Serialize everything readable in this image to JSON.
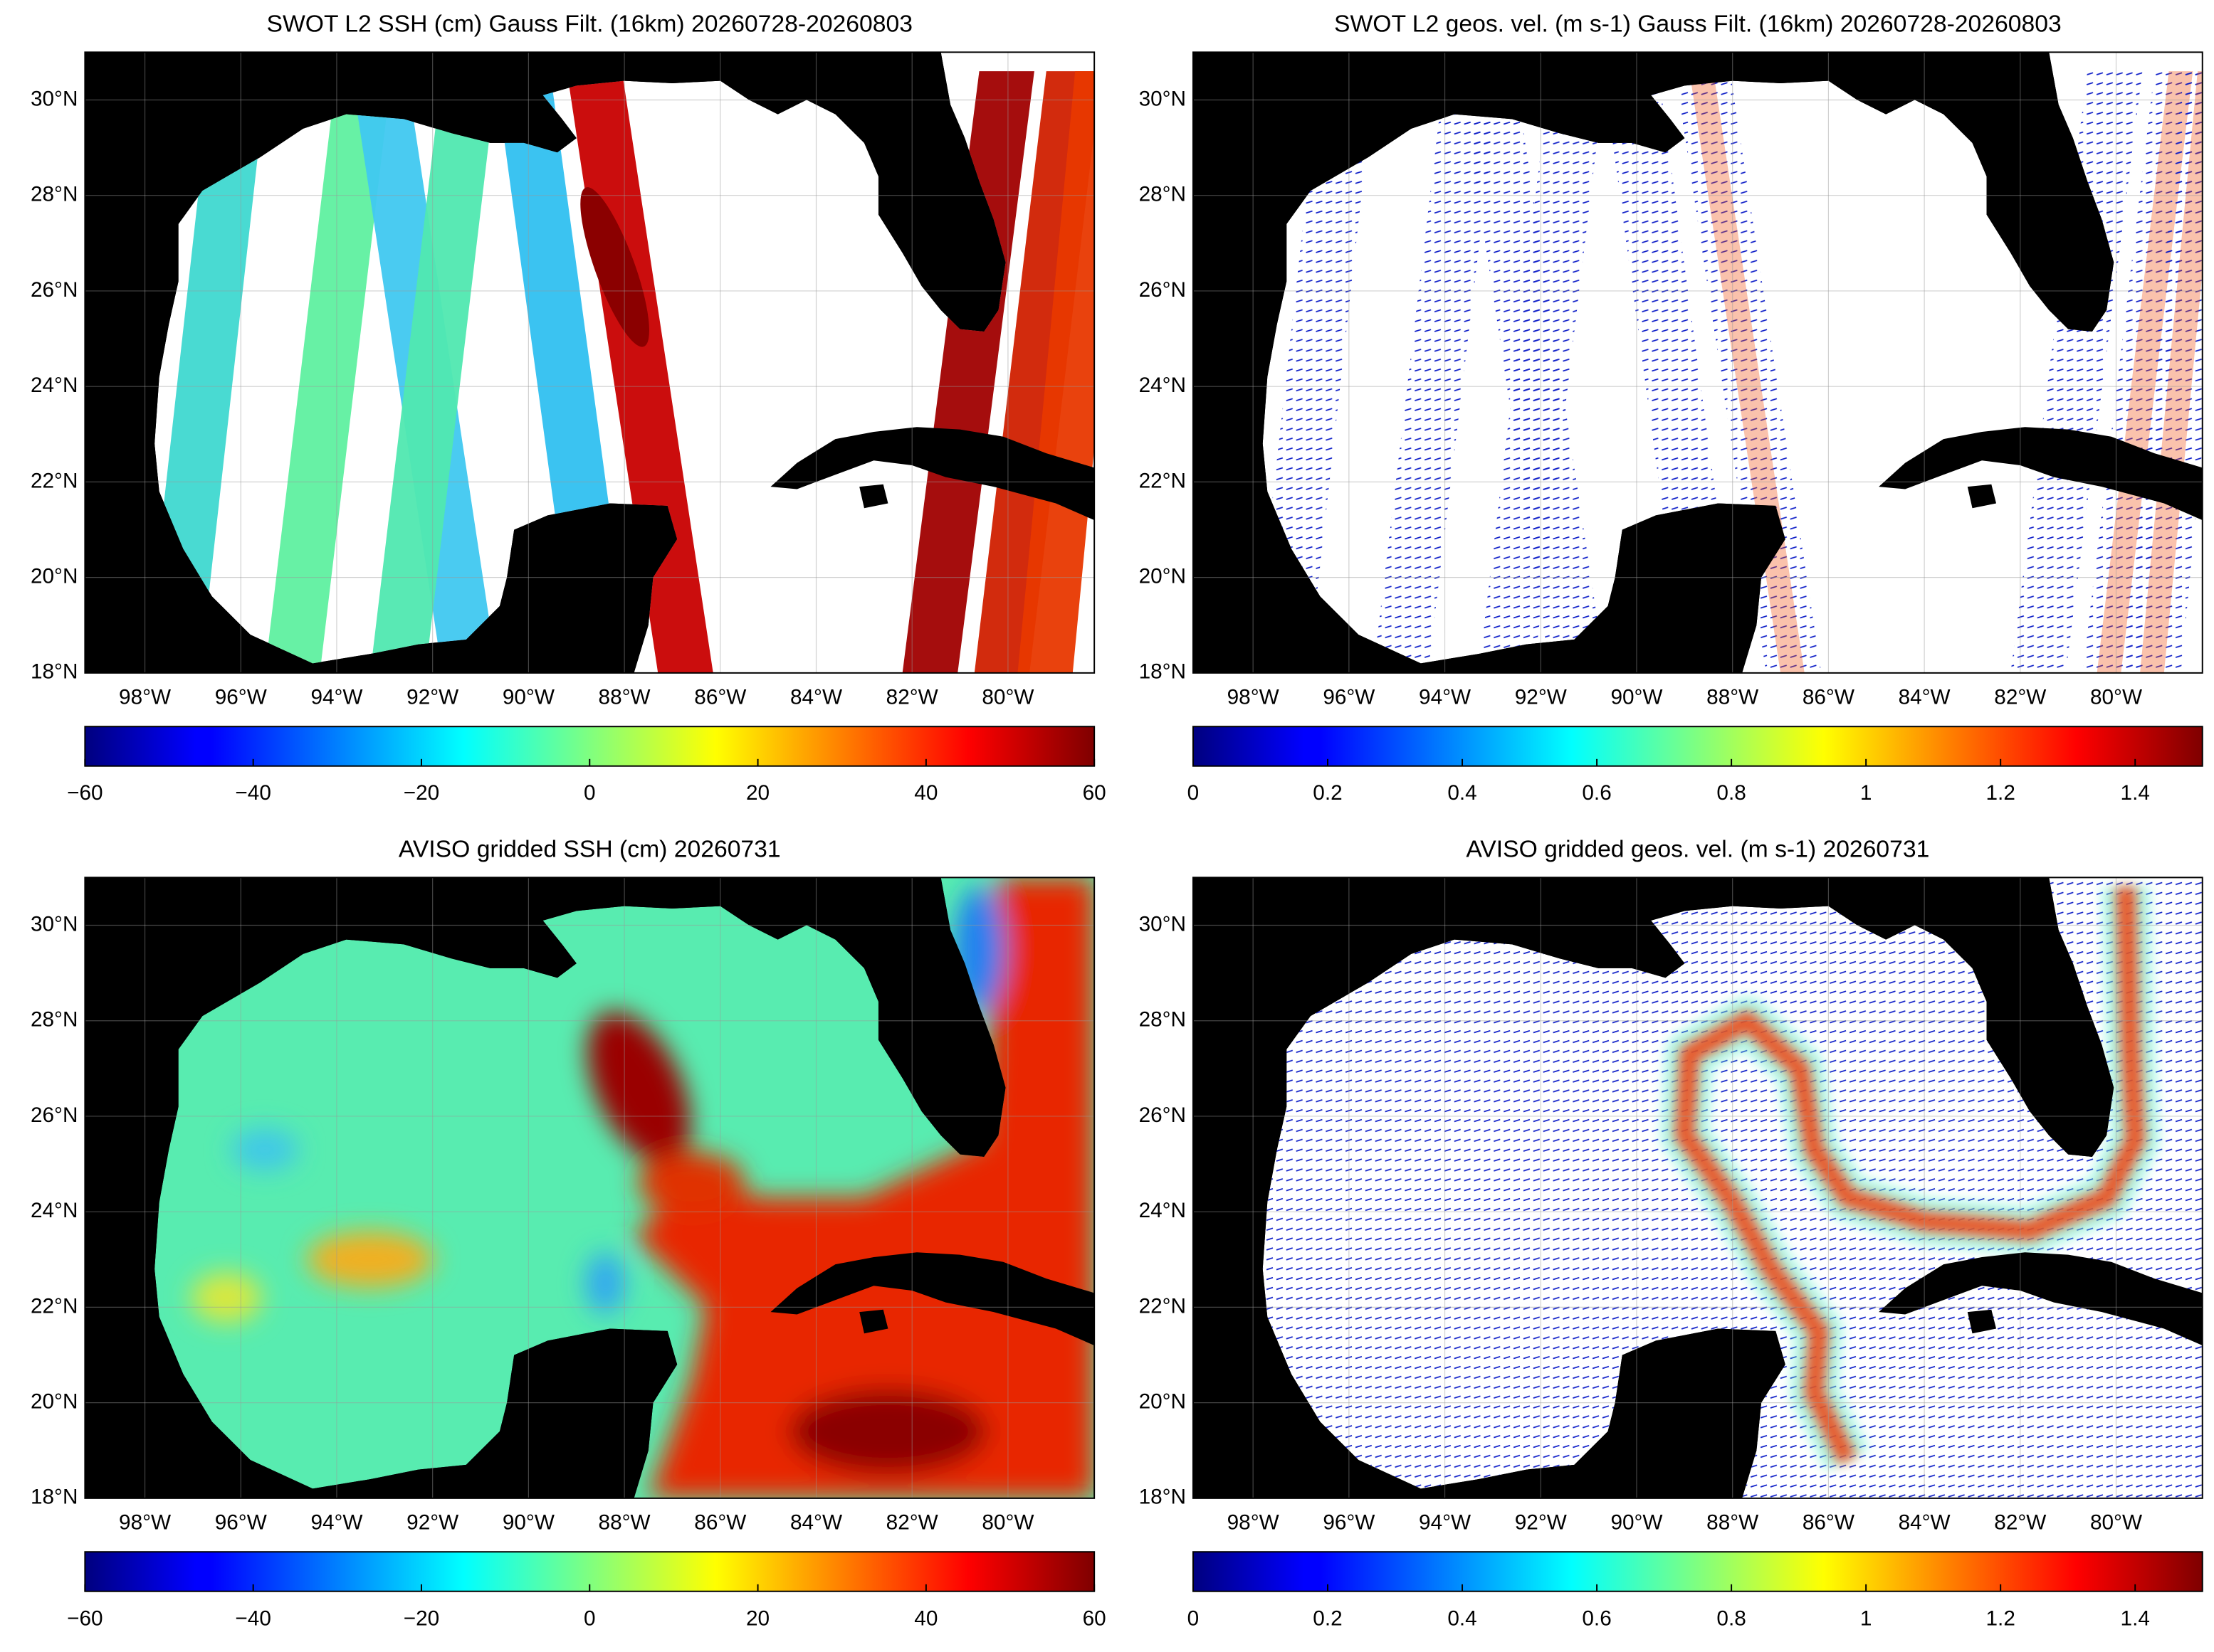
{
  "chart_data": [
    {
      "type": "map",
      "title": "SWOT L2 SSH (cm) Gauss Filt. (16km) 20260728-20260803",
      "xlim": [
        -99.25,
        -78.2
      ],
      "xticks": [
        {
          "value": -98,
          "label": "98°W"
        },
        {
          "value": -96,
          "label": "96°W"
        },
        {
          "value": -94,
          "label": "94°W"
        },
        {
          "value": -92,
          "label": "92°W"
        },
        {
          "value": -90,
          "label": "90°W"
        },
        {
          "value": -88,
          "label": "88°W"
        },
        {
          "value": -86,
          "label": "86°W"
        },
        {
          "value": -84,
          "label": "84°W"
        },
        {
          "value": -82,
          "label": "82°W"
        },
        {
          "value": -80,
          "label": "80°W"
        }
      ],
      "ylim": [
        18,
        31
      ],
      "yticks": [
        {
          "value": 18,
          "label": "18°N"
        },
        {
          "value": 20,
          "label": "20°N"
        },
        {
          "value": 22,
          "label": "22°N"
        },
        {
          "value": 24,
          "label": "24°N"
        },
        {
          "value": 26,
          "label": "26°N"
        },
        {
          "value": 28,
          "label": "28°N"
        },
        {
          "value": 30,
          "label": "30°N"
        }
      ],
      "grid": true,
      "colorbar": {
        "colormap": "jet",
        "lim": [
          -60,
          60
        ],
        "ticks": [
          {
            "value": -60,
            "label": "−60"
          },
          {
            "value": -40,
            "label": "−40"
          },
          {
            "value": -20,
            "label": "−20"
          },
          0,
          20,
          40,
          60
        ]
      }
    },
    {
      "type": "map",
      "title": "SWOT L2 geos. vel. (m s-1) Gauss Filt. (16km) 20260728-20260803",
      "xlim": [
        -99.25,
        -78.2
      ],
      "xticks": [
        {
          "value": -98,
          "label": "98°W"
        },
        {
          "value": -96,
          "label": "96°W"
        },
        {
          "value": -94,
          "label": "94°W"
        },
        {
          "value": -92,
          "label": "92°W"
        },
        {
          "value": -90,
          "label": "90°W"
        },
        {
          "value": -88,
          "label": "88°W"
        },
        {
          "value": -86,
          "label": "86°W"
        },
        {
          "value": -84,
          "label": "84°W"
        },
        {
          "value": -82,
          "label": "82°W"
        },
        {
          "value": -80,
          "label": "80°W"
        }
      ],
      "ylim": [
        18,
        31
      ],
      "yticks": [
        {
          "value": 18,
          "label": "18°N"
        },
        {
          "value": 20,
          "label": "20°N"
        },
        {
          "value": 22,
          "label": "22°N"
        },
        {
          "value": 24,
          "label": "24°N"
        },
        {
          "value": 26,
          "label": "26°N"
        },
        {
          "value": 28,
          "label": "28°N"
        },
        {
          "value": 30,
          "label": "30°N"
        }
      ],
      "grid": true,
      "colorbar": {
        "colormap": "jet",
        "lim": [
          0,
          1.5
        ],
        "ticks": [
          0,
          0.2,
          0.4,
          0.6,
          0.8,
          1,
          1.2,
          1.4
        ]
      }
    },
    {
      "type": "map",
      "title": "AVISO gridded SSH (cm) 20260731",
      "xlim": [
        -99.25,
        -78.2
      ],
      "xticks": [
        {
          "value": -98,
          "label": "98°W"
        },
        {
          "value": -96,
          "label": "96°W"
        },
        {
          "value": -94,
          "label": "94°W"
        },
        {
          "value": -92,
          "label": "92°W"
        },
        {
          "value": -90,
          "label": "90°W"
        },
        {
          "value": -88,
          "label": "88°W"
        },
        {
          "value": -86,
          "label": "86°W"
        },
        {
          "value": -84,
          "label": "84°W"
        },
        {
          "value": -82,
          "label": "82°W"
        },
        {
          "value": -80,
          "label": "80°W"
        }
      ],
      "ylim": [
        18,
        31
      ],
      "yticks": [
        {
          "value": 18,
          "label": "18°N"
        },
        {
          "value": 20,
          "label": "20°N"
        },
        {
          "value": 22,
          "label": "22°N"
        },
        {
          "value": 24,
          "label": "24°N"
        },
        {
          "value": 26,
          "label": "26°N"
        },
        {
          "value": 28,
          "label": "28°N"
        },
        {
          "value": 30,
          "label": "30°N"
        }
      ],
      "grid": true,
      "colorbar": {
        "colormap": "jet",
        "lim": [
          -60,
          60
        ],
        "ticks": [
          {
            "value": -60,
            "label": "−60"
          },
          {
            "value": -40,
            "label": "−40"
          },
          {
            "value": -20,
            "label": "−20"
          },
          0,
          20,
          40,
          60
        ]
      }
    },
    {
      "type": "map",
      "title": "AVISO gridded geos. vel. (m s-1)  20260731",
      "xlim": [
        -99.25,
        -78.2
      ],
      "xticks": [
        {
          "value": -98,
          "label": "98°W"
        },
        {
          "value": -96,
          "label": "96°W"
        },
        {
          "value": -94,
          "label": "94°W"
        },
        {
          "value": -92,
          "label": "92°W"
        },
        {
          "value": -90,
          "label": "90°W"
        },
        {
          "value": -88,
          "label": "88°W"
        },
        {
          "value": -86,
          "label": "86°W"
        },
        {
          "value": -84,
          "label": "84°W"
        },
        {
          "value": -82,
          "label": "82°W"
        },
        {
          "value": -80,
          "label": "80°W"
        }
      ],
      "ylim": [
        18,
        31
      ],
      "yticks": [
        {
          "value": 18,
          "label": "18°N"
        },
        {
          "value": 20,
          "label": "20°N"
        },
        {
          "value": 22,
          "label": "22°N"
        },
        {
          "value": 24,
          "label": "24°N"
        },
        {
          "value": 26,
          "label": "26°N"
        },
        {
          "value": 28,
          "label": "28°N"
        },
        {
          "value": 30,
          "label": "30°N"
        }
      ],
      "grid": true,
      "colorbar": {
        "colormap": "jet",
        "lim": [
          0,
          1.5
        ],
        "ticks": [
          0,
          0.2,
          0.4,
          0.6,
          0.8,
          1,
          1.2,
          1.4
        ]
      }
    }
  ]
}
